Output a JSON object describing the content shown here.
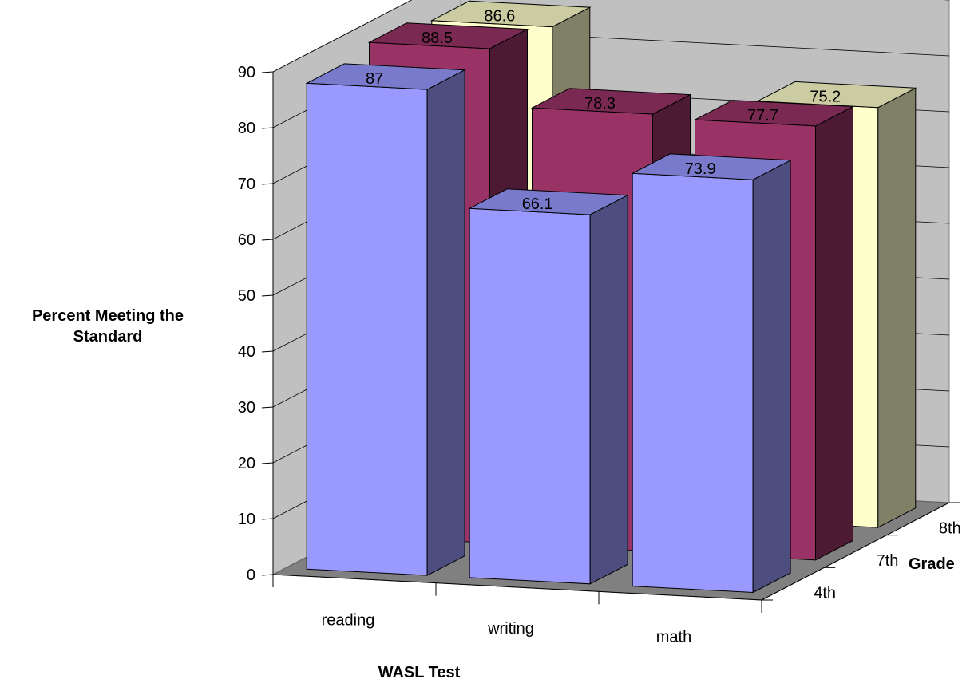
{
  "chart_data": {
    "type": "bar",
    "subtype": "3d-column",
    "title": "",
    "xlabel": "WASL Test",
    "ylabel": "Percent Meeting the Standard",
    "zlabel": "Grade",
    "categories": [
      "reading",
      "writing",
      "math"
    ],
    "yticks": [
      "0",
      "10",
      "20",
      "30",
      "40",
      "50",
      "60",
      "70",
      "80",
      "90"
    ],
    "ylim": [
      0,
      90
    ],
    "grid": true,
    "series": [
      {
        "name": "4th",
        "values": [
          87,
          66.1,
          73.9
        ],
        "labels": [
          "87",
          "66.1",
          "73.9"
        ],
        "color": "#9999ff"
      },
      {
        "name": "7th",
        "values": [
          88.5,
          78.3,
          77.7
        ],
        "labels": [
          "88.5",
          "78.3",
          "77.7"
        ],
        "color": "#993366"
      },
      {
        "name": "8th",
        "values": [
          86.6,
          null,
          75.2
        ],
        "labels": [
          "86.6",
          "",
          "75.2"
        ],
        "color": "#ffffcc"
      }
    ]
  }
}
